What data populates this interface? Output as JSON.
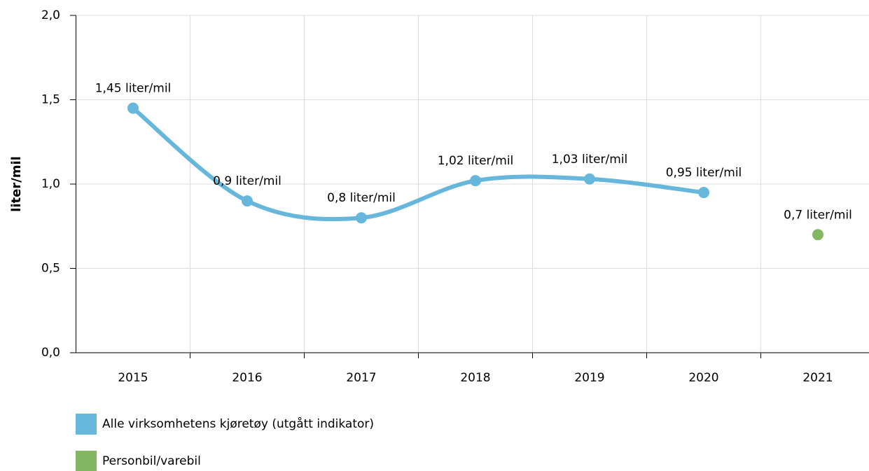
{
  "chart_data": {
    "type": "line",
    "y_label": "liter/mil",
    "categories": [
      "2015",
      "2016",
      "2017",
      "2018",
      "2019",
      "2020",
      "2021"
    ],
    "series": [
      {
        "name": "Alle virksomhetens kjøretøy (utgått indikator)",
        "color": "#67b7dc",
        "values": [
          1.45,
          0.9,
          0.8,
          1.02,
          1.03,
          0.95,
          null
        ],
        "value_labels": [
          "1,45 liter/mil",
          "0,9 liter/mil",
          "0,8 liter/mil",
          "1,02 liter/mil",
          "1,03 liter/mil",
          "0,95 liter/mil",
          null
        ]
      },
      {
        "name": "Personbil/varebil",
        "color": "#84b761",
        "values": [
          null,
          null,
          null,
          null,
          null,
          null,
          0.7
        ],
        "value_labels": [
          null,
          null,
          null,
          null,
          null,
          null,
          "0,7 liter/mil"
        ]
      }
    ],
    "ylim": [
      0,
      2
    ],
    "yticks": [
      {
        "value": 0,
        "label": "0,0"
      },
      {
        "value": 0.5,
        "label": "0,5"
      },
      {
        "value": 1,
        "label": "1,0"
      },
      {
        "value": 1.5,
        "label": "1,5"
      },
      {
        "value": 2,
        "label": "2,0"
      }
    ],
    "grid": true
  }
}
